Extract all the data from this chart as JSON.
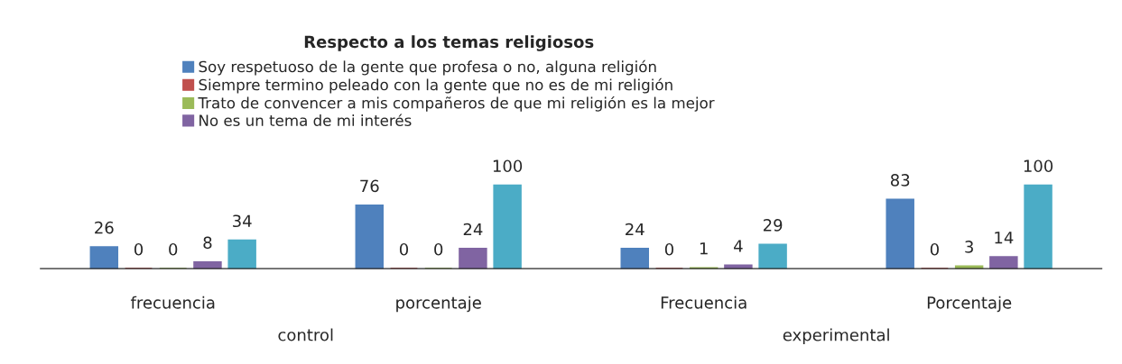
{
  "chart_data": {
    "type": "bar",
    "title": "Respecto a los temas religiosos",
    "categories": [
      "frecuencia",
      "porcentaje",
      "Frecuencia",
      "Porcentaje"
    ],
    "series": [
      {
        "name": "Soy respetuoso de la gente que profesa o no, alguna religión",
        "color": "#4f81bd",
        "values": [
          26,
          76,
          24,
          83
        ]
      },
      {
        "name": "Siempre termino peleado con la gente que no es de mi religión",
        "color": "#c0504d",
        "values": [
          0,
          0,
          0,
          0
        ]
      },
      {
        "name": "Trato de convencer a mis compañeros de que mi religión es la mejor",
        "color": "#9bbb59",
        "values": [
          0,
          0,
          1,
          3
        ]
      },
      {
        "name": "No es un tema de mi interés",
        "color": "#8064a2",
        "values": [
          8,
          24,
          4,
          14
        ]
      },
      {
        "color": "#4bacc6",
        "values": [
          34,
          100,
          29,
          100
        ]
      }
    ],
    "annotations": [
      "control",
      "experimental"
    ],
    "tick_labels": "x",
    "data_labels": true,
    "legend": "top",
    "grid": false
  }
}
